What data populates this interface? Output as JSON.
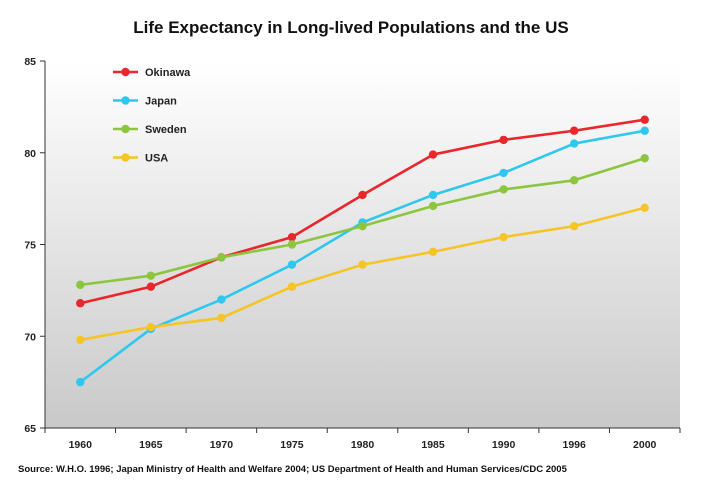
{
  "chart_data": {
    "type": "line",
    "title": "Life Expectancy in Long-lived Populations and the US",
    "xlabel": "",
    "ylabel": "",
    "categories": [
      "1960",
      "1965",
      "1970",
      "1975",
      "1980",
      "1985",
      "1990",
      "1996",
      "2000"
    ],
    "ylim": [
      65,
      85
    ],
    "yticks": [
      65,
      70,
      75,
      80,
      85
    ],
    "grid": false,
    "legend_position": "top-left",
    "series": [
      {
        "name": "Okinawa",
        "color": "#e8262b",
        "values": [
          71.8,
          72.7,
          74.3,
          75.4,
          77.7,
          79.9,
          80.7,
          81.2,
          81.8
        ]
      },
      {
        "name": "Japan",
        "color": "#2ec8ef",
        "values": [
          67.5,
          70.4,
          72.0,
          73.9,
          76.2,
          77.7,
          78.9,
          80.5,
          81.2
        ]
      },
      {
        "name": "Sweden",
        "color": "#8cc63e",
        "values": [
          72.8,
          73.3,
          74.3,
          75.0,
          76.0,
          77.1,
          78.0,
          78.5,
          79.7
        ]
      },
      {
        "name": "USA",
        "color": "#f5c526",
        "values": [
          69.8,
          70.5,
          71.0,
          72.7,
          73.9,
          74.6,
          75.4,
          76.0,
          77.0
        ]
      }
    ],
    "plot_background": "gradient white-to-grey"
  },
  "source_note": "Source: W.H.O. 1996; Japan Ministry of Health and Welfare 2004; US Department of Health and Human Services/CDC 2005"
}
